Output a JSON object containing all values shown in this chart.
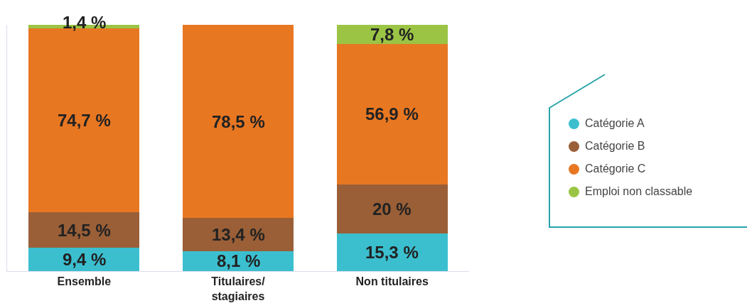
{
  "chart_data": {
    "type": "bar",
    "stacked": true,
    "categories": [
      "Ensemble",
      "Titulaires/stagiaires",
      "Non titulaires"
    ],
    "series": [
      {
        "name": "Catégorie A",
        "color": "#3bbfcf",
        "values": [
          9.4,
          8.1,
          15.3
        ],
        "value_labels": [
          "9,4 %",
          "8,1 %",
          "15,3 %"
        ]
      },
      {
        "name": "Catégorie B",
        "color": "#9a5f37",
        "values": [
          14.5,
          13.4,
          20
        ],
        "value_labels": [
          "14,5 %",
          "13,4 %",
          "20 %"
        ]
      },
      {
        "name": "Catégorie C",
        "color": "#e87722",
        "values": [
          74.7,
          78.5,
          56.9
        ],
        "value_labels": [
          "74,7 %",
          "78,5 %",
          "56,9 %"
        ]
      },
      {
        "name": "Emploi non classable",
        "color": "#9bc445",
        "values": [
          1.4,
          null,
          7.8
        ],
        "value_labels": [
          "1,4 %",
          null,
          "7,8 %"
        ]
      }
    ],
    "ylim": [
      0,
      100
    ],
    "tick_labels": "x",
    "grid": false,
    "legend": "right"
  }
}
